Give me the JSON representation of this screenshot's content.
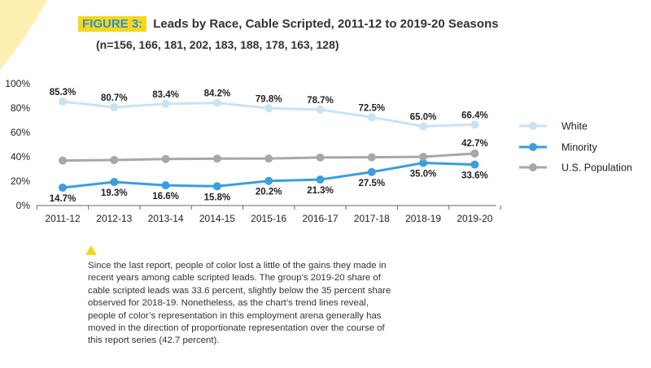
{
  "figure_label": "FIGURE 3:",
  "title": "Leads by Race, Cable Scripted, 2011-12 to 2019-20 Seasons",
  "subtitle": "(n=156, 166, 181, 202, 183, 188, 178, 163, 128)",
  "note": "Since the last report, people of color lost a little of the gains they made in recent years among cable scripted leads. The group’s 2019-20 share of cable scripted leads was 33.6 percent, slightly below the 35 percent share observed for 2018-19. Nonetheless, as the chart’s trend lines reveal, people of color’s representation in this employment arena generally has moved in the direction of proportionate representation over the course of this report series (42.7 percent).",
  "colors": {
    "white": "#c8e3f5",
    "minority": "#3a9ee0",
    "population": "#a7a7a7",
    "accent": "#f5d71c",
    "deco": "#fdf0b0"
  },
  "chart_data": {
    "type": "line",
    "title": "Leads by Race, Cable Scripted, 2011-12 to 2019-20 Seasons",
    "categories": [
      "2011-12",
      "2012-13",
      "2013-14",
      "2014-15",
      "2015-16",
      "2016-17",
      "2017-18",
      "2018-19",
      "2019-20"
    ],
    "ylim": [
      0,
      100
    ],
    "yticks": [
      "0%",
      "20%",
      "40%",
      "60%",
      "80%",
      "100%"
    ],
    "legend_position": "right",
    "series": [
      {
        "name": "White",
        "values": [
          85.3,
          80.7,
          83.4,
          84.2,
          79.8,
          78.7,
          72.5,
          65.0,
          66.4
        ],
        "labels": [
          "85.3%",
          "80.7%",
          "83.4%",
          "84.2%",
          "79.8%",
          "78.7%",
          "72.5%",
          "65.0%",
          "66.4%"
        ]
      },
      {
        "name": "Minority",
        "values": [
          14.7,
          19.3,
          16.6,
          15.8,
          20.2,
          21.3,
          27.5,
          35.0,
          33.6
        ],
        "labels": [
          "14.7%",
          "19.3%",
          "16.6%",
          "15.8%",
          "20.2%",
          "21.3%",
          "27.5%",
          "35.0%",
          "33.6%"
        ]
      },
      {
        "name": "U.S. Population",
        "values": [
          36.9,
          37.3,
          38.2,
          38.5,
          38.6,
          39.4,
          39.6,
          40.0,
          42.7
        ],
        "labels": [
          "",
          "",
          "",
          "",
          "",
          "",
          "",
          "",
          "42.7%"
        ]
      }
    ]
  }
}
